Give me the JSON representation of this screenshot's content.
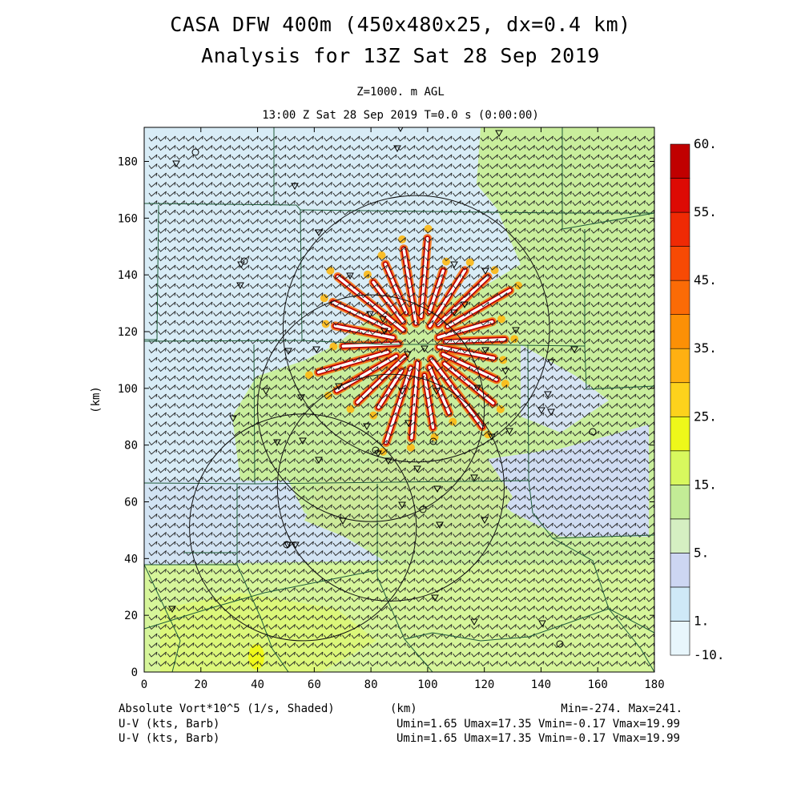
{
  "header": {
    "title_line1": "CASA DFW 400m (450x480x25, dx=0.4 km)",
    "title_line2": "Analysis for 13Z Sat 28 Sep 2019",
    "level": "Z=1000. m AGL",
    "valid_time": "13:00 Z Sat 28 Sep 2019    T=0.0 s (0:00:00)"
  },
  "footer": {
    "field1": "Absolute Vort*10^5 (1/s, Shaded)",
    "field2": "U-V (kts, Barb)",
    "field3": "U-V (kts, Barb)",
    "xunit": "(km)",
    "minmax": "Min=-274. Max=241.",
    "uv1": "Umin=1.65 Umax=17.35 Vmin=-0.17 Vmax=19.99",
    "uv2": "Umin=1.65 Umax=17.35 Vmin=-0.17 Vmax=19.99"
  },
  "chart_data": {
    "type": "heatmap",
    "title": "CASA DFW 400m (450x480x25, dx=0.4 km)",
    "subtitle": "Analysis for 13Z Sat 28 Sep 2019",
    "xlabel": "(km)",
    "ylabel": "(km)",
    "xlim": [
      0,
      180
    ],
    "ylim": [
      0,
      192
    ],
    "x_ticks": [
      0,
      20,
      40,
      60,
      80,
      100,
      120,
      140,
      160,
      180
    ],
    "y_ticks": [
      0,
      20,
      40,
      60,
      80,
      100,
      120,
      140,
      160,
      180
    ],
    "field": "Absolute Vort*10^5 (1/s, Shaded)",
    "overlay": "U-V (kts, Barb)",
    "min": -274,
    "max": 241,
    "colorbar": {
      "labels": [
        "60.",
        "55.",
        "45.",
        "35.",
        "25.",
        "15.",
        "5.",
        "1.",
        "-10."
      ],
      "bins": [
        {
          "color": "#e8f6fc"
        },
        {
          "color": "#cfe9f7"
        },
        {
          "color": "#cdd6f2"
        },
        {
          "color": "#d5efc2"
        },
        {
          "color": "#c3ec96"
        },
        {
          "color": "#d8f85e"
        },
        {
          "color": "#eef81a"
        },
        {
          "color": "#fdd21c"
        },
        {
          "color": "#ffb012"
        },
        {
          "color": "#fc9006"
        },
        {
          "color": "#fb6b06"
        },
        {
          "color": "#f74a04"
        },
        {
          "color": "#ef2a04"
        },
        {
          "color": "#dd0a04"
        },
        {
          "color": "#c00000"
        }
      ]
    },
    "radars": [
      {
        "x": 96,
        "y": 121,
        "r": 47
      },
      {
        "x": 80,
        "y": 93,
        "r": 40
      },
      {
        "x": 87,
        "y": 65,
        "r": 40
      },
      {
        "x": 56,
        "y": 51,
        "r": 40
      }
    ]
  }
}
